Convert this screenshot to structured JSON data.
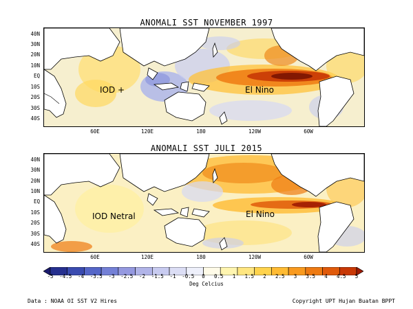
{
  "top_map": {
    "title": "ANOMALI SST NOVEMBER 1997",
    "annotations": {
      "left": "IOD +",
      "right": "El Nino"
    }
  },
  "bottom_map": {
    "title": "ANOMALI SST JULI 2015",
    "annotations": {
      "left": "IOD Netral",
      "right": "El Nino"
    }
  },
  "lat_labels": [
    "40N",
    "30N",
    "20N",
    "10N",
    "EQ",
    "10S",
    "20S",
    "30S",
    "40S"
  ],
  "lon_labels": [
    "60E",
    "120E",
    "180",
    "120W",
    "60W"
  ],
  "colorbar": {
    "tick_labels": [
      "-5",
      "-4.5",
      "-4",
      "-3.5",
      "-3",
      "-2.5",
      "-2",
      "-1.5",
      "-1",
      "-0.5",
      "0",
      "0.5",
      "1",
      "1.5",
      "2",
      "2.5",
      "3",
      "3.5",
      "4",
      "4.5",
      "5"
    ],
    "unit": "Deg Celcius",
    "colors": [
      "#1a1a6e",
      "#26308f",
      "#3a4bb0",
      "#5566c8",
      "#7480d6",
      "#9599e0",
      "#b1b4e8",
      "#c8cbf0",
      "#dcdef5",
      "#eef0fb",
      "#fffbe8",
      "#fff5b0",
      "#ffe680",
      "#ffd34d",
      "#ffbb33",
      "#f99a1f",
      "#ee7a12",
      "#e05a0a",
      "#c83805",
      "#9e1b02"
    ]
  },
  "footer": {
    "data_credit": "Data : NOAA OI SST V2 Hires",
    "copyright": "Copyright UPT Hujan Buatan BPPT"
  }
}
